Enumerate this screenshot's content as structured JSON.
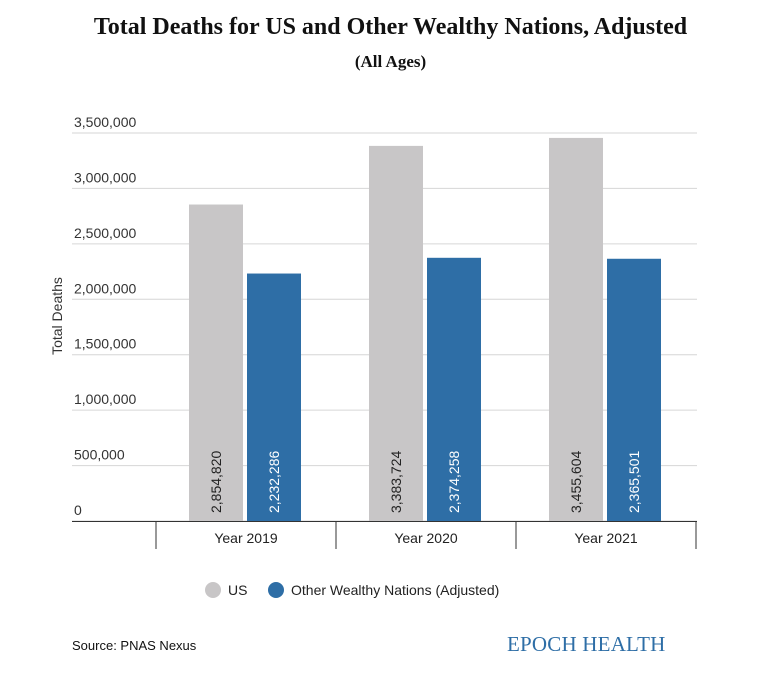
{
  "chart_data": {
    "type": "bar",
    "title": "Total Deaths for US and Other Wealthy Nations, Adjusted",
    "subtitle": "(All Ages)",
    "xlabel": "",
    "ylabel": "Total Deaths",
    "categories": [
      "Year 2019",
      "Year 2020",
      "Year 2021"
    ],
    "series": [
      {
        "name": "US",
        "color": "#c8c6c7",
        "values": [
          2854820,
          3383724,
          3455604
        ],
        "labels": [
          "2,854,820",
          "3,383,724",
          "3,455,604"
        ]
      },
      {
        "name": "Other Wealthy Nations (Adjusted)",
        "color": "#2e6ea6",
        "values": [
          2232286,
          2374258,
          2365501
        ],
        "labels": [
          "2,232,286",
          "2,374,258",
          "2,365,501"
        ]
      }
    ],
    "ylim": [
      0,
      3500000
    ],
    "yticks": [
      0,
      500000,
      1000000,
      1500000,
      2000000,
      2500000,
      3000000,
      3500000
    ],
    "ytick_labels": [
      "0",
      "500,000",
      "1,000,000",
      "1,500,000",
      "2,000,000",
      "2,500,000",
      "3,000,000",
      "3,500,000"
    ],
    "grid": true,
    "legend_position": "bottom-center"
  },
  "footer": {
    "source": "Source: PNAS Nexus",
    "brand": "EPOCH HEALTH"
  }
}
